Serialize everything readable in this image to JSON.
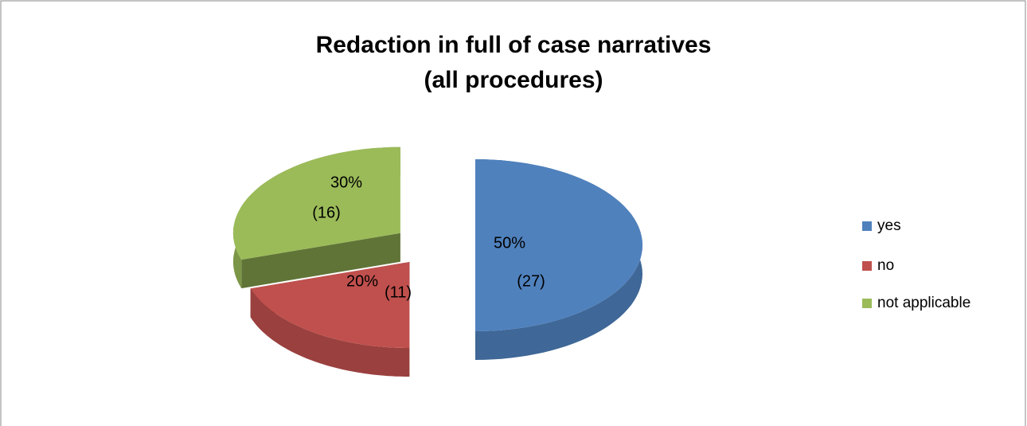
{
  "chart_data": {
    "type": "pie3d",
    "title": "Redaction in full of case narratives",
    "subtitle": "(all procedures)",
    "categories": [
      "yes",
      "no",
      "not applicable"
    ],
    "values": [
      50,
      20,
      30
    ],
    "value_labels": [
      "50%",
      "20%",
      "30%"
    ],
    "counts": [
      27,
      11,
      16
    ],
    "count_labels": [
      "(27)",
      "(11)",
      "(16)"
    ],
    "colors": [
      "#4f81bd",
      "#c0504d",
      "#9bbb59"
    ],
    "legend": "right"
  }
}
